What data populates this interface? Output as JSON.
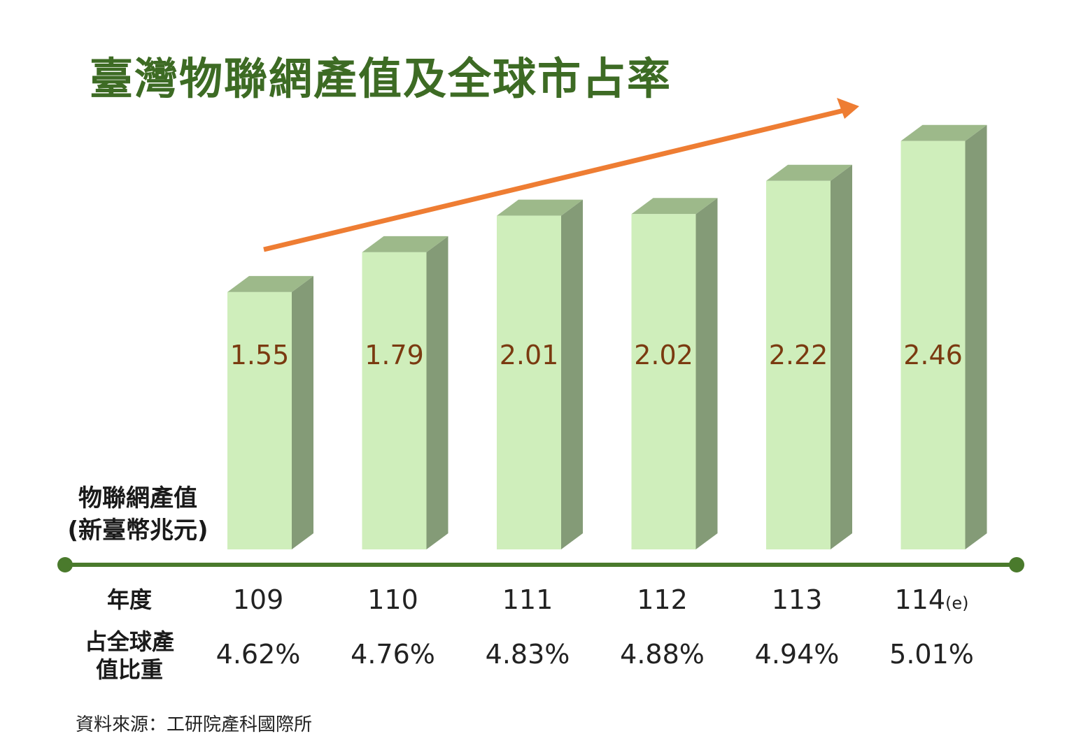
{
  "title": "臺灣物聯網產值及全球市占率",
  "y_axis_label_line1": "物聯網產值",
  "y_axis_label_line2": "(新臺幣兆元)",
  "row_label_year": "年度",
  "row_label_share_line1": "占全球產",
  "row_label_share_line2": "值比重",
  "source": "資料來源：工研院產科國際所",
  "colors": {
    "title": "#3d6b24",
    "bar_front": "#cfeebb",
    "bar_side": "#849b77",
    "bar_top": "#9db98a",
    "value_text": "#7a3a10",
    "axis": "#4a7a2c",
    "trend_arrow": "#ee7d33"
  },
  "chart_data": {
    "type": "bar",
    "categories": [
      "109",
      "110",
      "111",
      "112",
      "113",
      "114(e)"
    ],
    "category_display": [
      {
        "main": "109",
        "suffix": ""
      },
      {
        "main": "110",
        "suffix": ""
      },
      {
        "main": "111",
        "suffix": ""
      },
      {
        "main": "112",
        "suffix": ""
      },
      {
        "main": "113",
        "suffix": ""
      },
      {
        "main": "114",
        "suffix": "(e)"
      }
    ],
    "values": [
      1.55,
      1.79,
      2.01,
      2.02,
      2.22,
      2.46
    ],
    "value_labels": [
      "1.55",
      "1.79",
      "2.01",
      "2.02",
      "2.22",
      "2.46"
    ],
    "global_share": [
      "4.62%",
      "4.76%",
      "4.83%",
      "4.88%",
      "4.94%",
      "5.01%"
    ],
    "ylabel": "物聯網產值 (新臺幣兆元)",
    "trend": "upward arrow"
  }
}
